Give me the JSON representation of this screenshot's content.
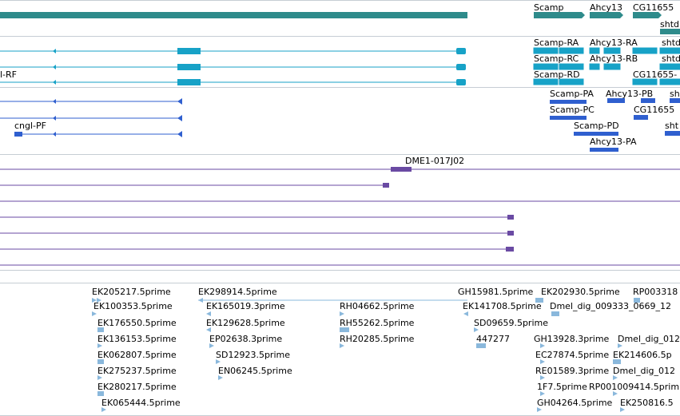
{
  "gene_labels": {
    "scamp": "Scamp",
    "ahcy13": "Ahcy13",
    "cg11655": "CG11655",
    "shtd_top": "shtd"
  },
  "transcript_labels": {
    "scamp_ra": "Scamp-RA",
    "ahcy13_ra": "Ahcy13-RA",
    "scamp_rc": "Scamp-RC",
    "ahcy13_rb": "Ahcy13-RB",
    "cngl_rf": "l-RF",
    "scamp_rd": "Scamp-RD",
    "cg11655_r": "CG11655-",
    "shtd_1": "shtd",
    "shtd_2": "shtd",
    "shtd_3": "shtd"
  },
  "protein_labels": {
    "scamp_pa": "Scamp-PA",
    "ahcy13_pb": "Ahcy13-PB",
    "scamp_pc": "Scamp-PC",
    "cg11655_p": "CG11655",
    "cngl_pf": "cngl-PF",
    "scamp_pd": "Scamp-PD",
    "ahcy13_pa": "Ahcy13-PA",
    "shtd_p1": "sht",
    "shtd_p2": "sht"
  },
  "clone_label": "DME1-017J02",
  "est_labels": [
    "EK205217.5prime",
    "EK298914.5prime",
    "GH15981.5prime",
    "EK202930.5prime",
    "RP003318",
    "EK100353.5prime",
    "EK165019.3prime",
    "RH04662.5prime",
    "EK141708.5prime",
    "Dmel_dig_009333_0669_12",
    "EK176550.5prime",
    "EK129628.5prime",
    "RH55262.5prime",
    "SD09659.5prime",
    "EK136153.5prime",
    "EP02638.3prime",
    "RH20285.5prime",
    "447277",
    "GH13928.3prime",
    "Dmel_dig_012",
    "EK062807.5prime",
    "SD12923.5prime",
    "EC27874.5prime",
    "EK214606.5p",
    "EK275237.5prime",
    "EN06245.5prime",
    "RE01589.3prime",
    "Dmel_dig_012",
    "EK280217.5prime",
    "1F7.5prime",
    "RP001009414.5prim",
    "EK065444.5prime",
    "GH04264.5prime",
    "EK250816.5"
  ],
  "colors": {
    "gene": "#2e8b8b",
    "transcript": "#17a2c7",
    "protein": "#2f5fcf",
    "clone": "#6a4aa3",
    "est": "#8ab8dc",
    "divider": "#c6cdd4"
  }
}
